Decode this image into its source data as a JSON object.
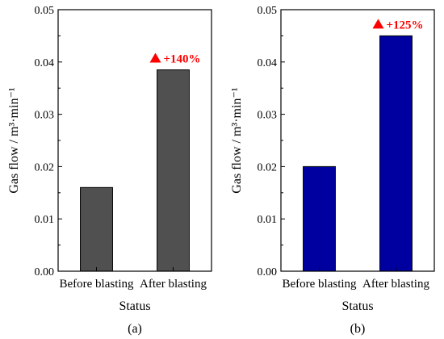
{
  "chart_data": [
    {
      "type": "bar",
      "panel_label": "(a)",
      "categories": [
        "Before blasting",
        "After blasting"
      ],
      "values": [
        0.016,
        0.0385
      ],
      "xlabel": "Status",
      "ylabel": "Gas flow / m³·min⁻¹",
      "ylim": [
        0,
        0.05
      ],
      "yticks": [
        "0.00",
        "0.01",
        "0.02",
        "0.03",
        "0.04",
        "0.05"
      ],
      "bar_color": "#505050",
      "annotation": {
        "text": "+140%",
        "color": "#ff0000",
        "icon": "up-triangle-icon"
      },
      "grid": false
    },
    {
      "type": "bar",
      "panel_label": "(b)",
      "categories": [
        "Before blasting",
        "After blasting"
      ],
      "values": [
        0.02,
        0.045
      ],
      "xlabel": "Status",
      "ylabel": "Gas flow / m³·min⁻¹",
      "ylim": [
        0,
        0.05
      ],
      "yticks": [
        "0.00",
        "0.01",
        "0.02",
        "0.03",
        "0.04",
        "0.05"
      ],
      "bar_color": "#0000a0",
      "annotation": {
        "text": "+125%",
        "color": "#ff0000",
        "icon": "up-triangle-icon"
      },
      "grid": false
    }
  ]
}
